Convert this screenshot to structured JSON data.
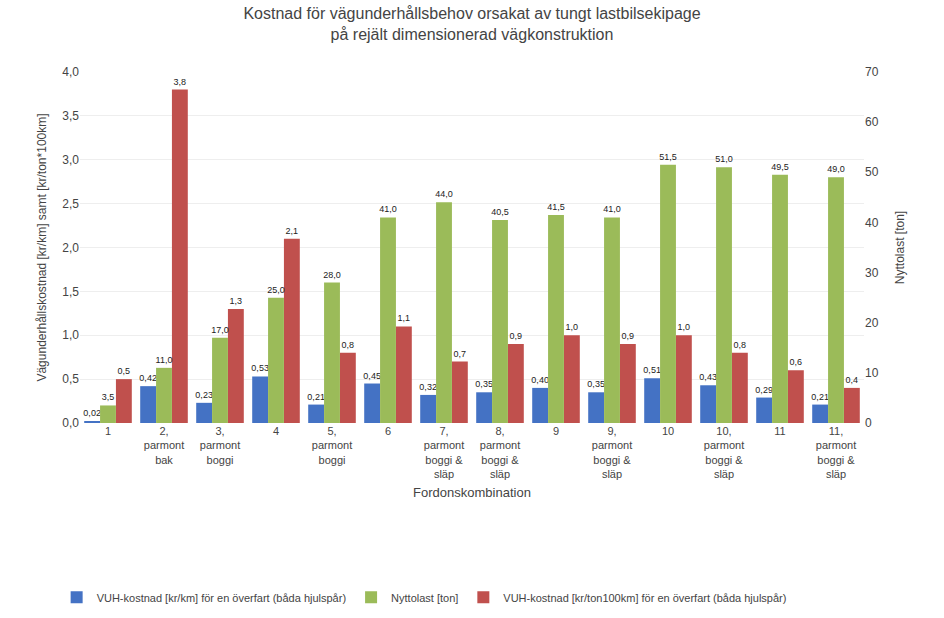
{
  "chart_data": {
    "type": "bar",
    "title": "Kostnad för vägunderhållsbehov orsakat av tungt lastbilsekipage\npå rejält dimensionerad vägkonstruktion",
    "xlabel": "Fordonskombination",
    "ylabel": "Vägunderhållskostnad [kr/km] samt [kr/ton*100km]",
    "y2label": "Nyttolast [ton]",
    "categories": [
      "1",
      "2,\nparmont\nbak",
      "3,\nparmont\nboggi",
      "4",
      "5,\nparmont\nboggi",
      "6",
      "7,\nparmont\nboggi &\nsläp",
      "8,\nparmont\nboggi &\nsläp",
      "9",
      "9,\nparmont\nboggi &\nsläp",
      "10",
      "10,\nparmont\nboggi &\nsläp",
      "11",
      "11,\nparmont\nboggi &\nsläp"
    ],
    "series": [
      {
        "name": "VUH-kostnad [kr/km] för en överfart (båda hjulspår)",
        "color": "#4472C4",
        "values": [
          0.02,
          0.42,
          0.23,
          0.53,
          0.21,
          0.45,
          0.32,
          0.35,
          0.4,
          0.35,
          0.51,
          0.43,
          0.29,
          0.21
        ],
        "value_labels": [
          "0,02",
          "0,42",
          "0,23",
          "0,53",
          "0,21",
          "0,45",
          "0,32",
          "0,35",
          "0,40",
          "0,35",
          "0,51",
          "0,43",
          "0,29",
          "0,21"
        ]
      },
      {
        "name": "Nyttolast [ton]",
        "color": "#9BBB59",
        "axis": "y2",
        "values": [
          3.5,
          11.0,
          17.0,
          25.0,
          28.0,
          41.0,
          44.0,
          40.5,
          41.5,
          41.0,
          51.5,
          51.0,
          49.5,
          49.0
        ],
        "value_labels": [
          "3,5",
          "11,0",
          "17,0",
          "25,0",
          "28,0",
          "41,0",
          "44,0",
          "40,5",
          "41,5",
          "41,0",
          "51,5",
          "51,0",
          "49,5",
          "49,0"
        ]
      },
      {
        "name": "VUH-kostnad [kr/ton100km] för en överfart (båda hjulspår)",
        "color": "#C0504D",
        "values": [
          0.5,
          3.8,
          1.3,
          2.1,
          0.8,
          1.1,
          0.7,
          0.9,
          1.0,
          0.9,
          1.0,
          0.8,
          0.6,
          0.4
        ],
        "value_labels": [
          "0,5",
          "3,8",
          "1,3",
          "2,1",
          "0,8",
          "1,1",
          "0,7",
          "0,9",
          "1,0",
          "0,9",
          "1,0",
          "0,8",
          "0,6",
          "0,4"
        ]
      }
    ],
    "ylim": [
      0,
      4.0
    ],
    "yticks": [
      {
        "value": 0.0,
        "label": "0,0"
      },
      {
        "value": 0.5,
        "label": "0,5"
      },
      {
        "value": 1.0,
        "label": "1,0"
      },
      {
        "value": 1.5,
        "label": "1,5"
      },
      {
        "value": 2.0,
        "label": "2,0"
      },
      {
        "value": 2.5,
        "label": "2,5"
      },
      {
        "value": 3.0,
        "label": "3,0"
      },
      {
        "value": 3.5,
        "label": "3,5"
      },
      {
        "value": 4.0,
        "label": "4,0"
      }
    ],
    "y2lim": [
      0,
      70
    ],
    "y2ticks": [
      0,
      10,
      20,
      30,
      40,
      50,
      60,
      70
    ],
    "grid": true,
    "legend": "bottom",
    "data_labels": true
  }
}
